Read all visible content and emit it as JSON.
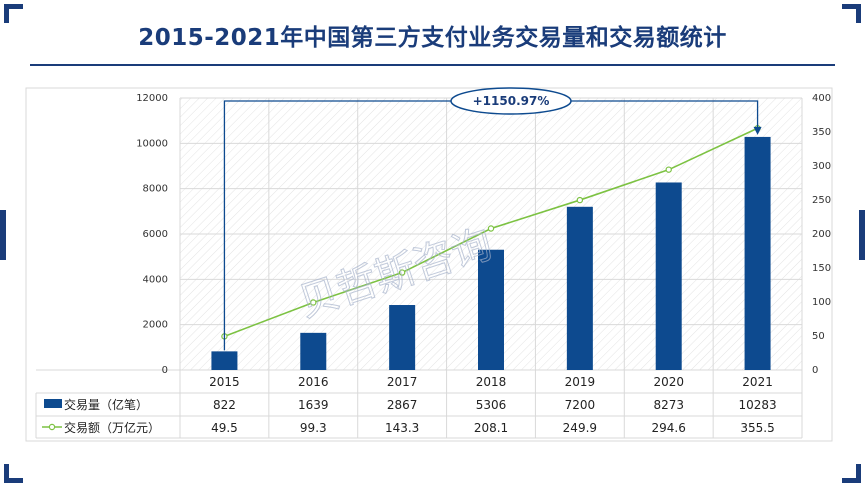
{
  "title": "2015-2021年中国第三方支付业务交易量和交易额统计",
  "watermark": "贝哲斯咨询",
  "colors": {
    "frame": "#1a3c7a",
    "bar": "#0d4a8f",
    "line": "#7cc242",
    "grid": "#d9d9d9"
  },
  "chart_data": {
    "type": "bar",
    "categories": [
      "2015",
      "2016",
      "2017",
      "2018",
      "2019",
      "2020",
      "2021"
    ],
    "series": [
      {
        "name": "交易量（亿笔）",
        "type": "bar",
        "axis": "left",
        "values": [
          822,
          1639,
          2867,
          5306,
          7200,
          8273,
          10283
        ]
      },
      {
        "name": "交易额（万亿元）",
        "type": "line",
        "axis": "right",
        "values": [
          49.5,
          99.3,
          143.3,
          208.1,
          249.9,
          294.6,
          355.5
        ]
      }
    ],
    "y_left": {
      "min": 0,
      "max": 12000,
      "ticks": [
        "0",
        "2000",
        "4000",
        "6000",
        "8000",
        "10000",
        "12000"
      ]
    },
    "y_right": {
      "min": 0,
      "max": 400,
      "ticks": [
        "0",
        "50",
        "100",
        "150",
        "200",
        "250",
        "300",
        "350",
        "400"
      ]
    },
    "table_rows": [
      [
        "822",
        "1639",
        "2867",
        "5306",
        "7200",
        "8273",
        "10283"
      ],
      [
        "49.5",
        "99.3",
        "143.3",
        "208.1",
        "249.9",
        "294.6",
        "355.5"
      ]
    ],
    "annotation": "+1150.97%",
    "grid": true,
    "legend": "data-table"
  }
}
